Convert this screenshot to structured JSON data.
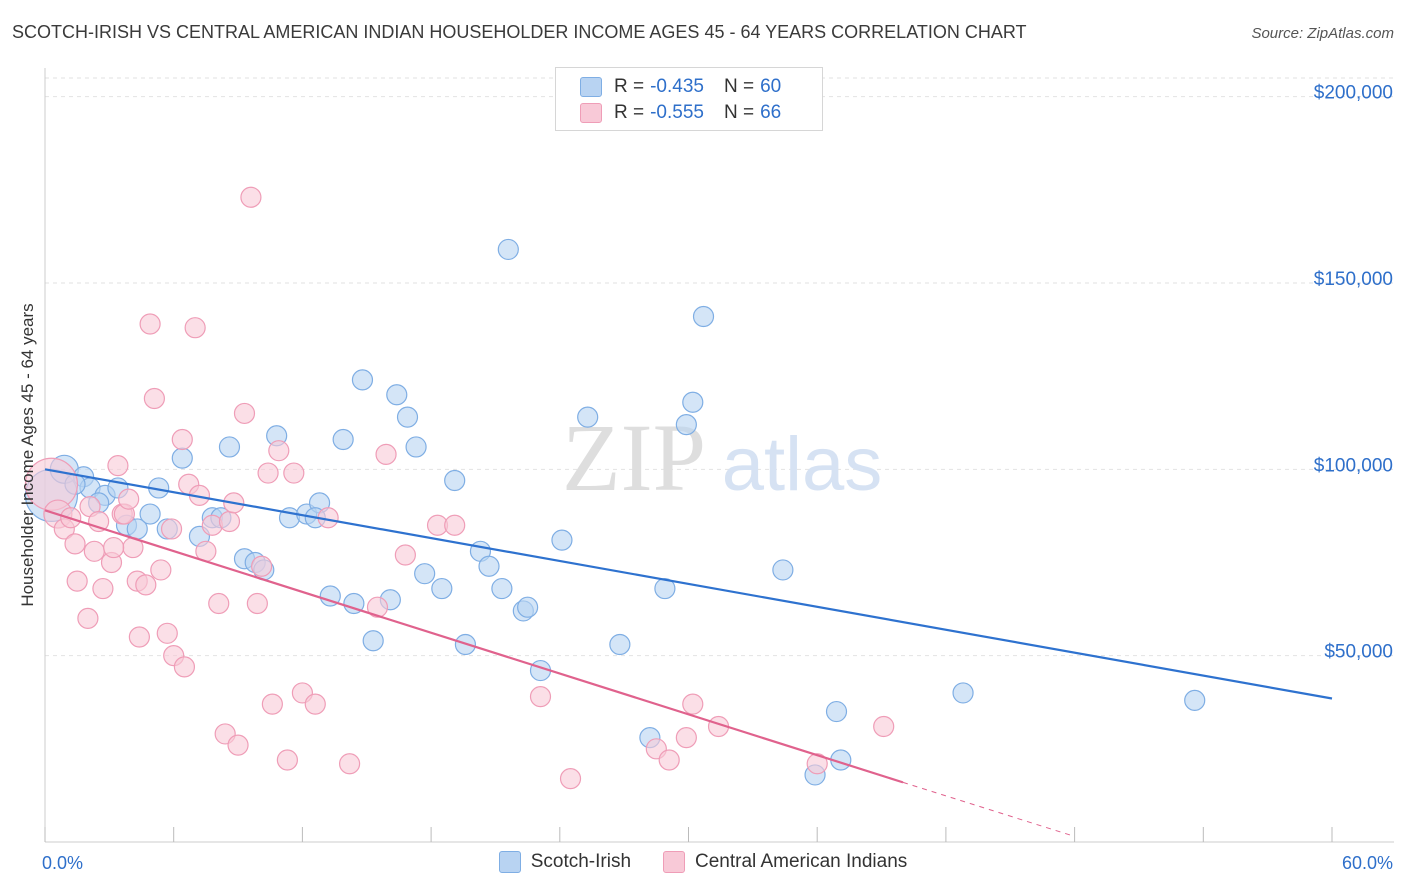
{
  "title": "SCOTCH-IRISH VS CENTRAL AMERICAN INDIAN HOUSEHOLDER INCOME AGES 45 - 64 YEARS CORRELATION CHART",
  "source": "Source: ZipAtlas.com",
  "watermark": {
    "zip": "ZIP",
    "atlas": "atlas"
  },
  "legend_top": {
    "r_key": "R = ",
    "n_key": "N = ",
    "rows": [
      {
        "r": "-0.435",
        "n": "60"
      },
      {
        "r": "-0.555",
        "n": "66"
      }
    ]
  },
  "colors": {
    "blue_fill": "#b8d3f2",
    "blue_stroke": "#7faee4",
    "blue_line": "#2e72cf",
    "pink_fill": "#f8c9d7",
    "pink_stroke": "#ef9db7",
    "pink_line": "#e0628d",
    "axis_text": "#2e6fca"
  },
  "chart_data": {
    "type": "scatter",
    "title": "SCOTCH-IRISH VS CENTRAL AMERICAN INDIAN HOUSEHOLDER INCOME AGES 45 - 64 YEARS CORRELATION CHART",
    "xlabel": "",
    "ylabel": "Householder Income Ages 45 - 64 years",
    "xlim": [
      0,
      60
    ],
    "ylim": [
      0,
      205000
    ],
    "x_tick_labels": [
      "0.0%",
      "60.0%"
    ],
    "y_ticks": [
      {
        "value": 50000,
        "label": "$50,000"
      },
      {
        "value": 100000,
        "label": "$100,000"
      },
      {
        "value": 150000,
        "label": "$150,000"
      },
      {
        "value": 200000,
        "label": "$200,000"
      }
    ],
    "grid": true,
    "legend_position": "bottom",
    "series": [
      {
        "name": "Scotch-Irish",
        "r": -0.435,
        "n": 60,
        "trend": {
          "x0": 0,
          "y0": 100000,
          "x1": 60,
          "y1": 38500
        },
        "points": [
          [
            0.3,
            93000,
            26
          ],
          [
            0.9,
            100000,
            14
          ],
          [
            1.8,
            98000,
            10
          ],
          [
            2.1,
            95000,
            10
          ],
          [
            2.8,
            93000,
            10
          ],
          [
            3.4,
            95000,
            10
          ],
          [
            3.8,
            85000,
            10
          ],
          [
            4.3,
            84000,
            10
          ],
          [
            4.9,
            88000,
            10
          ],
          [
            5.3,
            95000,
            10
          ],
          [
            5.7,
            84000,
            10
          ],
          [
            6.4,
            103000,
            10
          ],
          [
            7.2,
            82000,
            10
          ],
          [
            7.8,
            87000,
            10
          ],
          [
            8.2,
            87000,
            10
          ],
          [
            8.6,
            106000,
            10
          ],
          [
            9.3,
            76000,
            10
          ],
          [
            9.8,
            75000,
            10
          ],
          [
            10.2,
            73000,
            10
          ],
          [
            10.8,
            109000,
            10
          ],
          [
            11.4,
            87000,
            10
          ],
          [
            12.2,
            88000,
            10
          ],
          [
            12.8,
            91000,
            10
          ],
          [
            13.3,
            66000,
            10
          ],
          [
            13.9,
            108000,
            10
          ],
          [
            14.4,
            64000,
            10
          ],
          [
            14.8,
            124000,
            10
          ],
          [
            15.3,
            54000,
            10
          ],
          [
            16.1,
            65000,
            10
          ],
          [
            16.4,
            120000,
            10
          ],
          [
            16.9,
            114000,
            10
          ],
          [
            17.3,
            106000,
            10
          ],
          [
            17.7,
            72000,
            10
          ],
          [
            18.5,
            68000,
            10
          ],
          [
            19.1,
            97000,
            10
          ],
          [
            19.6,
            53000,
            10
          ],
          [
            20.3,
            78000,
            10
          ],
          [
            20.7,
            74000,
            10
          ],
          [
            21.3,
            68000,
            10
          ],
          [
            21.6,
            159000,
            10
          ],
          [
            22.3,
            62000,
            10
          ],
          [
            22.5,
            63000,
            10
          ],
          [
            23.1,
            46000,
            10
          ],
          [
            24.1,
            81000,
            10
          ],
          [
            25.3,
            114000,
            10
          ],
          [
            26.8,
            53000,
            10
          ],
          [
            28.2,
            28000,
            10
          ],
          [
            28.9,
            68000,
            10
          ],
          [
            29.9,
            112000,
            10
          ],
          [
            30.2,
            118000,
            10
          ],
          [
            30.7,
            141000,
            10
          ],
          [
            34.4,
            73000,
            10
          ],
          [
            35.9,
            18000,
            10
          ],
          [
            36.9,
            35000,
            10
          ],
          [
            37.1,
            22000,
            10
          ],
          [
            42.8,
            40000,
            10
          ],
          [
            53.6,
            38000,
            10
          ],
          [
            1.4,
            96000,
            10
          ],
          [
            2.5,
            91000,
            10
          ],
          [
            12.6,
            87000,
            10
          ]
        ]
      },
      {
        "name": "Central American Indians",
        "r": -0.555,
        "n": 66,
        "trend": {
          "x0": 0,
          "y0": 89000,
          "x1": 40,
          "y1": 16000
        },
        "trend_dashed_to": {
          "x": 48,
          "y": 1500
        },
        "points": [
          [
            0.3,
            96000,
            26
          ],
          [
            0.6,
            88000,
            14
          ],
          [
            0.9,
            84000,
            10
          ],
          [
            1.2,
            87000,
            10
          ],
          [
            1.4,
            80000,
            10
          ],
          [
            1.5,
            70000,
            10
          ],
          [
            2.1,
            90000,
            10
          ],
          [
            2.3,
            78000,
            10
          ],
          [
            2.5,
            86000,
            10
          ],
          [
            2.7,
            68000,
            10
          ],
          [
            3.1,
            75000,
            10
          ],
          [
            3.4,
            101000,
            10
          ],
          [
            3.6,
            88000,
            10
          ],
          [
            3.7,
            88000,
            10
          ],
          [
            3.9,
            92000,
            10
          ],
          [
            4.1,
            79000,
            10
          ],
          [
            4.3,
            70000,
            10
          ],
          [
            4.4,
            55000,
            10
          ],
          [
            4.7,
            69000,
            10
          ],
          [
            4.9,
            139000,
            10
          ],
          [
            5.1,
            119000,
            10
          ],
          [
            5.4,
            73000,
            10
          ],
          [
            5.7,
            56000,
            10
          ],
          [
            6.0,
            50000,
            10
          ],
          [
            6.4,
            108000,
            10
          ],
          [
            6.5,
            47000,
            10
          ],
          [
            6.7,
            96000,
            10
          ],
          [
            7.0,
            138000,
            10
          ],
          [
            7.2,
            93000,
            10
          ],
          [
            7.5,
            78000,
            10
          ],
          [
            7.8,
            85000,
            10
          ],
          [
            8.1,
            64000,
            10
          ],
          [
            8.4,
            29000,
            10
          ],
          [
            8.6,
            86000,
            10
          ],
          [
            8.8,
            91000,
            10
          ],
          [
            9.0,
            26000,
            10
          ],
          [
            9.3,
            115000,
            10
          ],
          [
            9.6,
            173000,
            10
          ],
          [
            9.9,
            64000,
            10
          ],
          [
            10.1,
            74000,
            10
          ],
          [
            10.4,
            99000,
            10
          ],
          [
            10.6,
            37000,
            10
          ],
          [
            10.9,
            105000,
            10
          ],
          [
            11.3,
            22000,
            10
          ],
          [
            11.6,
            99000,
            10
          ],
          [
            12.0,
            40000,
            10
          ],
          [
            12.6,
            37000,
            10
          ],
          [
            13.2,
            87000,
            10
          ],
          [
            14.2,
            21000,
            10
          ],
          [
            15.5,
            63000,
            10
          ],
          [
            15.9,
            104000,
            10
          ],
          [
            16.8,
            77000,
            10
          ],
          [
            18.3,
            85000,
            10
          ],
          [
            19.1,
            85000,
            10
          ],
          [
            23.1,
            39000,
            10
          ],
          [
            28.5,
            25000,
            10
          ],
          [
            29.1,
            22000,
            10
          ],
          [
            29.9,
            28000,
            10
          ],
          [
            30.2,
            37000,
            10
          ],
          [
            31.4,
            31000,
            10
          ],
          [
            36.0,
            21000,
            10
          ],
          [
            39.1,
            31000,
            10
          ],
          [
            24.5,
            17000,
            10
          ],
          [
            3.2,
            79000,
            10
          ],
          [
            5.9,
            84000,
            10
          ],
          [
            2.0,
            60000,
            10
          ]
        ]
      }
    ]
  }
}
